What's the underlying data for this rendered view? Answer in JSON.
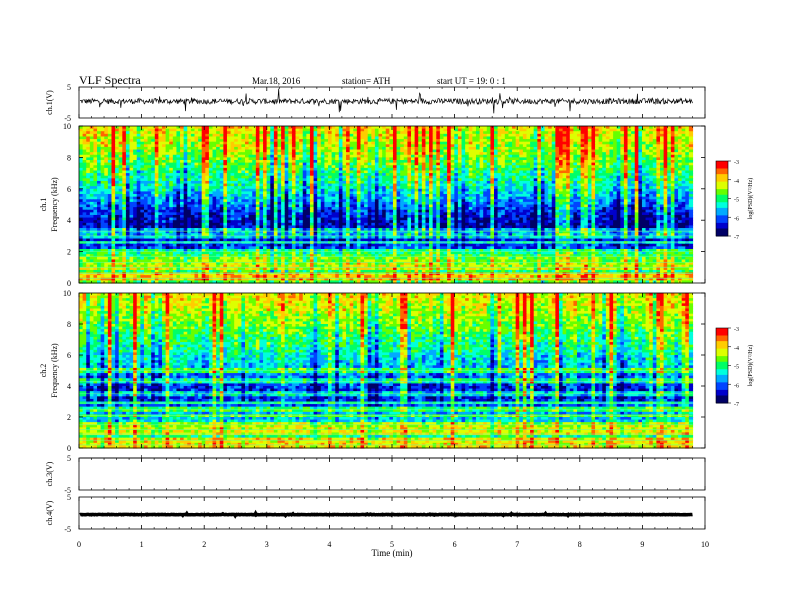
{
  "header": {
    "title": "VLF  Spectra",
    "date": "Mar.18, 2016",
    "station": "station= ATH",
    "start": "start  UT  =    19: 0  : 1"
  },
  "chart_data": {
    "type": "heatmap",
    "title": "VLF  Spectra",
    "xlabel": "Time  (min)",
    "xlim": [
      0,
      10
    ],
    "x_ticks": [
      "0",
      "1",
      "2",
      "3",
      "4",
      "5",
      "6",
      "7",
      "8",
      "9",
      "10"
    ],
    "data_end_min": 9.8,
    "panels": [
      {
        "id": "ch1-waveform",
        "kind": "waveform",
        "ylabel": "ch.1(V)",
        "ylim": [
          -5,
          5
        ],
        "y_ticks": [
          "5",
          "-5"
        ],
        "baseline_v": 0.4,
        "amplitude_v": 1.8
      },
      {
        "id": "ch1-spectrogram",
        "kind": "spectrogram",
        "ylabel": "ch.1\nFrequency  (kHz)",
        "ylabel_lines": [
          "ch.1",
          "Frequency  (kHz)"
        ],
        "ylim_khz": [
          0,
          10
        ],
        "y_ticks": [
          "0",
          "2",
          "4",
          "6",
          "8",
          "10"
        ],
        "colorbar": {
          "label": "log(PSD)(V²/Hz)",
          "range": [
            -7,
            -3
          ],
          "ticks": [
            "-3",
            "-4",
            "-5",
            "-6",
            "-7"
          ]
        },
        "profile_khz": [
          0.5,
          1,
          1.5,
          2,
          2.5,
          3,
          3.5,
          4,
          4.5,
          5,
          5.5,
          6,
          6.5,
          7,
          7.5,
          8,
          8.5,
          9,
          9.5,
          10
        ],
        "profile_log_psd": [
          -4.8,
          -5.2,
          -5.5,
          -6.0,
          -6.3,
          -6.5,
          -6.6,
          -6.5,
          -6.3,
          -6.0,
          -5.7,
          -5.4,
          -5.2,
          -5.0,
          -4.8,
          -4.6,
          -4.4,
          -4.3,
          -4.2,
          -4.1
        ],
        "bands_khz": [
          0.3,
          0.6,
          1.0,
          1.3,
          1.7,
          2.0,
          2.6,
          3.0,
          3.3
        ]
      },
      {
        "id": "ch2-spectrogram",
        "kind": "spectrogram",
        "ylabel": "ch.2\nFrequency  (kHz)",
        "ylabel_lines": [
          "ch.2",
          "Frequency  (kHz)"
        ],
        "ylim_khz": [
          0,
          10
        ],
        "y_ticks": [
          "0",
          "2",
          "4",
          "6",
          "8",
          "10"
        ],
        "colorbar": {
          "label": "log(PSD)(V²/Hz)",
          "range": [
            -7,
            -3
          ],
          "ticks": [
            "-3",
            "-4",
            "-5",
            "-6",
            "-7"
          ]
        },
        "profile_khz": [
          0.5,
          1,
          1.5,
          2,
          2.5,
          3,
          3.5,
          4,
          4.5,
          5,
          5.5,
          6,
          6.5,
          7,
          7.5,
          8,
          8.5,
          9,
          9.5,
          10
        ],
        "profile_log_psd": [
          -5.0,
          -5.1,
          -5.3,
          -5.6,
          -5.8,
          -6.2,
          -6.4,
          -6.2,
          -6.0,
          -5.8,
          -5.5,
          -5.3,
          -5.1,
          -5.0,
          -4.8,
          -4.6,
          -4.5,
          -4.3,
          -4.2,
          -4.1
        ],
        "bands_khz": [
          0.2,
          0.5,
          0.9,
          1.2,
          1.5,
          2.1,
          2.5,
          2.9,
          3.5,
          4.3,
          5.0
        ]
      },
      {
        "id": "ch3-waveform",
        "kind": "waveform",
        "ylabel": "ch.3(V)",
        "ylim": [
          -5,
          5
        ],
        "y_ticks": [
          "5",
          "-5"
        ],
        "baseline_v": 5.0,
        "amplitude_v": 0.0
      },
      {
        "id": "ch4-waveform",
        "kind": "waveform",
        "ylabel": "ch.4(V)",
        "ylim": [
          -5,
          5
        ],
        "y_ticks": [
          "5",
          "-5"
        ],
        "baseline_v": -0.5,
        "amplitude_v": 0.15
      }
    ]
  },
  "colors": {
    "colormap": [
      "#000066",
      "#0000cc",
      "#0044ff",
      "#00aaff",
      "#00ffdd",
      "#00ff66",
      "#66ff00",
      "#ddff00",
      "#ffcc00",
      "#ff6600",
      "#ff0000",
      "#ffffff"
    ],
    "axis": "#000000",
    "trace": "#000000"
  }
}
